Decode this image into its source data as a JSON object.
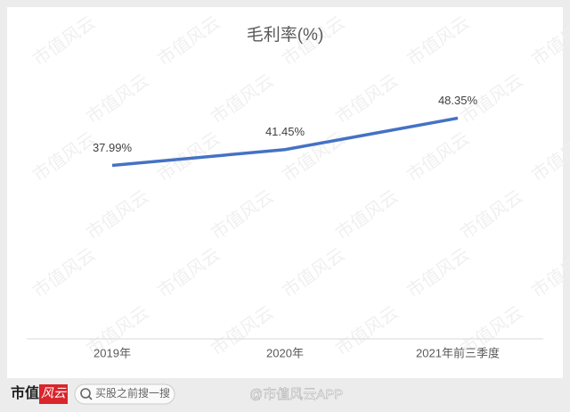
{
  "chart_data": {
    "type": "line",
    "title": "毛利率(%)",
    "categories": [
      "2019年",
      "2020年",
      "2021年前三季度"
    ],
    "series": [
      {
        "name": "毛利率",
        "color": "#4472c4",
        "values": [
          37.99,
          41.45,
          48.35
        ],
        "value_labels": [
          "37.99%",
          "41.45%",
          "48.35%"
        ]
      }
    ]
  },
  "watermark": "市值风云",
  "footer": {
    "brand_a": "市值",
    "brand_b": "风云",
    "search": "买股之前搜一搜",
    "weibo": "@市值风云APP"
  }
}
